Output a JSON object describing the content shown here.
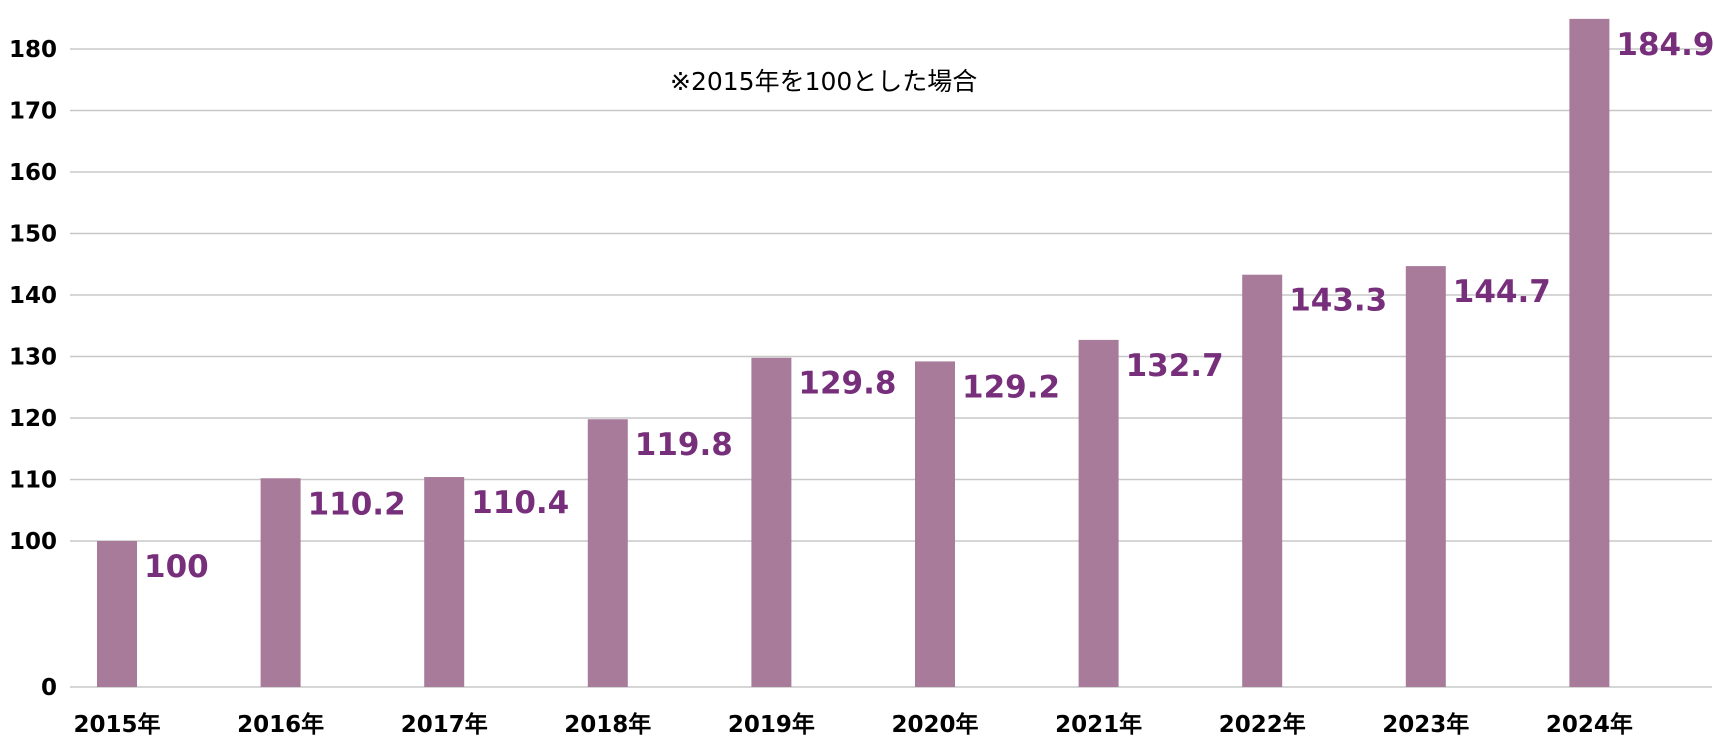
{
  "chart_data": {
    "type": "bar",
    "categories": [
      "2015年",
      "2016年",
      "2017年",
      "2018年",
      "2019年",
      "2020年",
      "2021年",
      "2022年",
      "2023年",
      "2024年"
    ],
    "values": [
      100,
      110.2,
      110.4,
      119.8,
      129.8,
      129.2,
      132.7,
      143.3,
      144.7,
      184.9
    ],
    "data_labels": [
      "100",
      "110.2",
      "110.4",
      "119.8",
      "129.8",
      "129.2",
      "132.7",
      "143.3",
      "144.7",
      "184.9"
    ],
    "annotation": "※2015年を100とした場合",
    "y_ticks": [
      0,
      100,
      110,
      120,
      130,
      140,
      150,
      160,
      170,
      180
    ],
    "y_tick_labels": [
      "0",
      "100",
      "110",
      "120",
      "130",
      "140",
      "150",
      "160",
      "170",
      "180"
    ],
    "y_axis_break": true,
    "ylim": [
      0,
      190
    ],
    "grid": true,
    "bar_color": "#a87b9b",
    "label_color": "#772f7b",
    "grid_color": "#c8c8c8"
  }
}
